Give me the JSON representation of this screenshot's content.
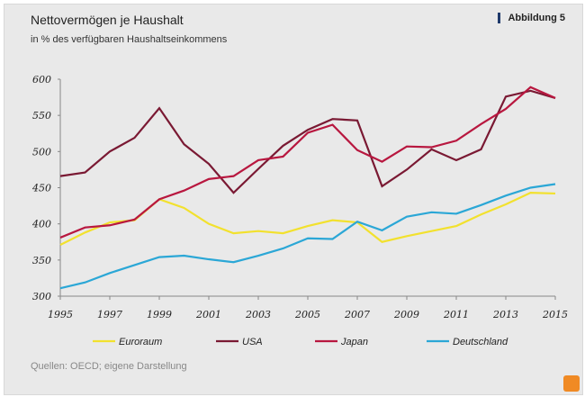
{
  "header": {
    "title": "Nettovermögen je Haushalt",
    "subtitle": "in % des verfügbaren Haushaltseinkommens",
    "figure_label": "Abbildung 5"
  },
  "footer": {
    "source": "Quellen: OECD; eigene Darstellung"
  },
  "chart_data": {
    "type": "line",
    "title": "Nettovermögen je Haushalt",
    "subtitle": "in % des verfügbaren Haushaltseinkommens",
    "xlabel": "",
    "ylabel": "",
    "x": [
      1995,
      1996,
      1997,
      1998,
      1999,
      2000,
      2001,
      2002,
      2003,
      2004,
      2005,
      2006,
      2007,
      2008,
      2009,
      2010,
      2011,
      2012,
      2013,
      2014,
      2015
    ],
    "xticks": [
      "1995",
      "1997",
      "1999",
      "2001",
      "2003",
      "2005",
      "2007",
      "2009",
      "2011",
      "2013",
      "2015"
    ],
    "yticks": [
      "300",
      "350",
      "400",
      "450",
      "500",
      "550",
      "600"
    ],
    "ylim": [
      300,
      600
    ],
    "xlim": [
      1995,
      2015
    ],
    "grid": false,
    "legend_position": "bottom",
    "series": [
      {
        "name": "Euroraum",
        "color": "#f2e12e",
        "values": [
          371,
          388,
          402,
          405,
          434,
          422,
          400,
          387,
          390,
          387,
          397,
          405,
          402,
          375,
          383,
          390,
          397,
          413,
          427,
          443,
          442
        ]
      },
      {
        "name": "USA",
        "color": "#7a1933",
        "values": [
          466,
          471,
          500,
          519,
          560,
          510,
          483,
          443,
          476,
          508,
          530,
          545,
          543,
          452,
          475,
          503,
          488,
          503,
          576,
          584,
          574
        ]
      },
      {
        "name": "Japan",
        "color": "#b8173f",
        "values": [
          381,
          395,
          398,
          406,
          434,
          446,
          462,
          466,
          488,
          493,
          526,
          537,
          502,
          486,
          507,
          506,
          515,
          538,
          559,
          589,
          574
        ]
      },
      {
        "name": "Deutschland",
        "color": "#2ba7d6",
        "values": [
          311,
          319,
          332,
          343,
          354,
          356,
          351,
          347,
          356,
          366,
          380,
          379,
          403,
          391,
          410,
          416,
          414,
          426,
          439,
          450,
          455
        ]
      }
    ]
  }
}
